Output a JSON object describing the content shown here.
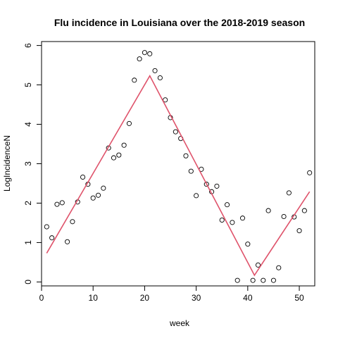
{
  "chart_data": {
    "type": "scatter",
    "title": "Flu incidence in Louisiana over the 2018-2019 season",
    "xlabel": "week",
    "ylabel": "LogIncidenceN",
    "xlim": [
      0,
      53
    ],
    "ylim": [
      -0.1,
      6.1
    ],
    "x_ticks": [
      0,
      10,
      20,
      30,
      40,
      50
    ],
    "y_ticks": [
      0,
      1,
      2,
      3,
      4,
      5,
      6
    ],
    "points": [
      [
        1,
        1.4
      ],
      [
        2,
        1.12
      ],
      [
        3,
        1.97
      ],
      [
        4,
        2.01
      ],
      [
        5,
        1.02
      ],
      [
        6,
        1.53
      ],
      [
        7,
        2.03
      ],
      [
        8,
        2.66
      ],
      [
        9,
        2.48
      ],
      [
        10,
        2.13
      ],
      [
        11,
        2.2
      ],
      [
        12,
        2.38
      ],
      [
        13,
        3.4
      ],
      [
        14,
        3.15
      ],
      [
        15,
        3.22
      ],
      [
        16,
        3.47
      ],
      [
        17,
        4.02
      ],
      [
        18,
        5.12
      ],
      [
        19,
        5.66
      ],
      [
        20,
        5.82
      ],
      [
        21,
        5.79
      ],
      [
        22,
        5.36
      ],
      [
        23,
        5.18
      ],
      [
        24,
        4.62
      ],
      [
        25,
        4.17
      ],
      [
        26,
        3.81
      ],
      [
        27,
        3.64
      ],
      [
        28,
        3.2
      ],
      [
        29,
        2.81
      ],
      [
        30,
        2.19
      ],
      [
        31,
        2.86
      ],
      [
        32,
        2.48
      ],
      [
        33,
        2.29
      ],
      [
        34,
        2.43
      ],
      [
        35,
        1.57
      ],
      [
        36,
        1.96
      ],
      [
        37,
        1.51
      ],
      [
        38,
        0.04
      ],
      [
        39,
        1.62
      ],
      [
        40,
        0.96
      ],
      [
        41,
        0.04
      ],
      [
        42,
        0.43
      ],
      [
        43,
        0.04
      ],
      [
        44,
        1.81
      ],
      [
        45,
        0.04
      ],
      [
        46,
        0.36
      ],
      [
        47,
        1.66
      ],
      [
        48,
        2.26
      ],
      [
        49,
        1.65
      ],
      [
        50,
        1.3
      ],
      [
        51,
        1.81
      ],
      [
        52,
        2.77
      ]
    ],
    "fit_line": {
      "color": "#DF536B",
      "points": [
        [
          1,
          0.73
        ],
        [
          21,
          5.23
        ],
        [
          41.3,
          0.17
        ],
        [
          52,
          2.29
        ]
      ]
    },
    "marker": "open-circle",
    "grid": false,
    "legend": false
  }
}
